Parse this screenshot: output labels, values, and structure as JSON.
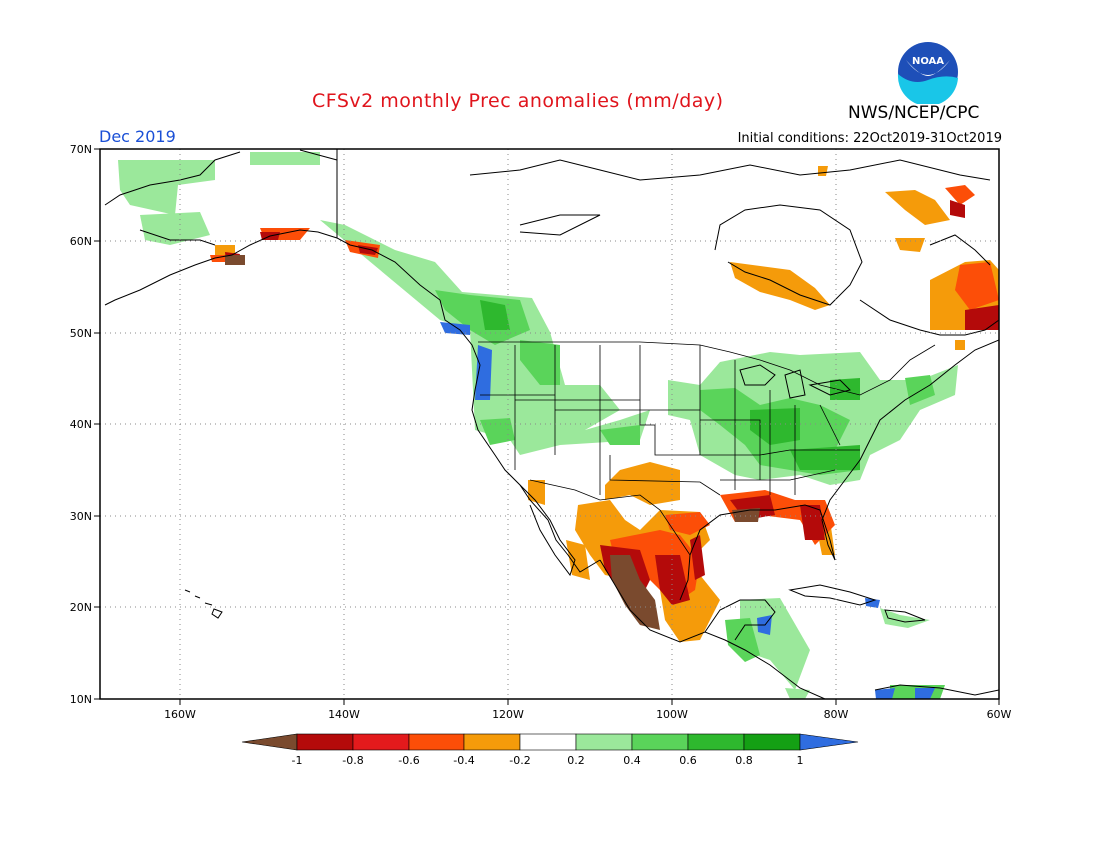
{
  "title": "CFSv2 monthly Prec anomalies (mm/day)",
  "agency": "NWS/NCEP/CPC",
  "month_label": "Dec 2019",
  "initial_conditions": "Initial conditions: 22Oct2019-31Oct2019",
  "logo_text": "NOAA",
  "map": {
    "lon_ticks": [
      "160W",
      "140W",
      "120W",
      "100W",
      "80W",
      "60W"
    ],
    "lat_ticks": [
      "70N",
      "60N",
      "50N",
      "40N",
      "30N",
      "20N",
      "10N"
    ],
    "gridlines": "dotted"
  },
  "colorbar": {
    "labels": [
      "-1",
      "-0.8",
      "-0.6",
      "-0.4",
      "-0.2",
      "0.2",
      "0.4",
      "0.6",
      "0.8",
      "1"
    ],
    "colors": [
      "#7a4a2e",
      "#b40a0a",
      "#e31a1c",
      "#fc4e08",
      "#f59b0a",
      "#ffffff",
      "#9be89b",
      "#5ad45a",
      "#2eb82e",
      "#14a014",
      "#2f6de0"
    ]
  }
}
